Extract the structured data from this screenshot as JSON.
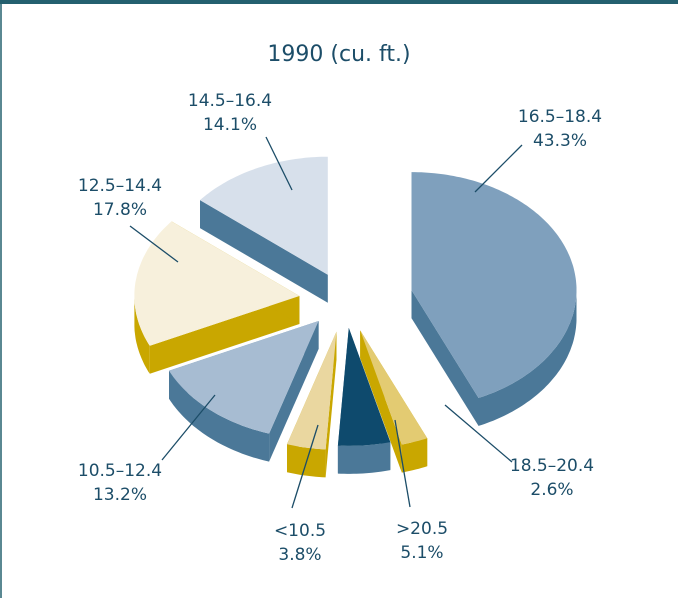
{
  "chart_data": {
    "type": "pie3d",
    "title": "1990 (cu. ft.)",
    "categories": [
      "16.5–18.4",
      "18.5–20.4",
      ">20.5",
      "<10.5",
      "10.5–12.4",
      "12.5–14.4",
      "14.5–16.4"
    ],
    "values": [
      43.3,
      2.6,
      5.1,
      3.8,
      13.2,
      17.8,
      14.1
    ],
    "value_labels": [
      "43.3%",
      "2.6%",
      "5.1%",
      "3.8%",
      "13.2%",
      "17.8%",
      "14.1%"
    ],
    "colors": [
      "#7fa0bd",
      "#e3cb72",
      "#0e4a6d",
      "#ead7a0",
      "#a7bcd2",
      "#f7f0dc",
      "#d7e0eb"
    ]
  }
}
